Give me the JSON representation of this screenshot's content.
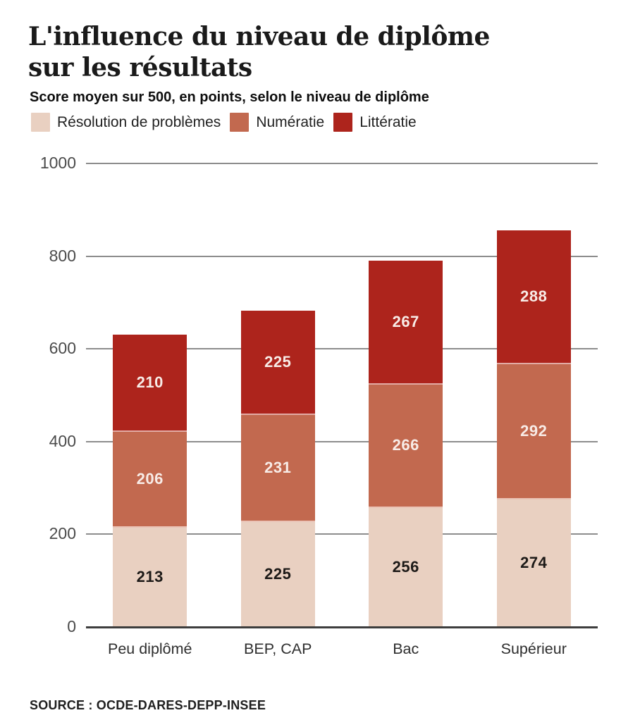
{
  "header": {
    "title_line1": "L'influence du niveau de diplôme",
    "title_line2": "sur les résultats",
    "subtitle": "Score moyen sur 500, en points, selon le niveau de diplôme"
  },
  "source_note": "SOURCE : OCDE-DARES-DEPP-INSEE",
  "colors": {
    "background": "#ffffff",
    "gridline": "#8d8d8d",
    "axis": "#3d3d3d",
    "title_text": "#1a1a1a",
    "tick_text": "#4b4b4b"
  },
  "chart_data": {
    "type": "bar",
    "stacked": true,
    "title": "L'influence du niveau de diplôme sur les résultats",
    "subtitle": "Score moyen sur 500, en points, selon le niveau de diplôme",
    "categories": [
      "Peu diplômé",
      "BEP, CAP",
      "Bac",
      "Supérieur"
    ],
    "series": [
      {
        "name": "Résolution de problèmes",
        "color": "#e9d0c1",
        "label_color": "#1d1a18",
        "values": [
          213,
          225,
          256,
          274
        ]
      },
      {
        "name": "Numératie",
        "color": "#c2694f",
        "label_color": "#f8ece7",
        "values": [
          206,
          231,
          266,
          292
        ]
      },
      {
        "name": "Littératie",
        "color": "#ad241c",
        "label_color": "#f8ece7",
        "values": [
          210,
          225,
          267,
          288
        ]
      }
    ],
    "y_ticks": [
      0,
      200,
      400,
      600,
      800,
      1000
    ],
    "ylim": [
      0,
      1000
    ],
    "grid": "horizontal",
    "legend_position": "top"
  }
}
